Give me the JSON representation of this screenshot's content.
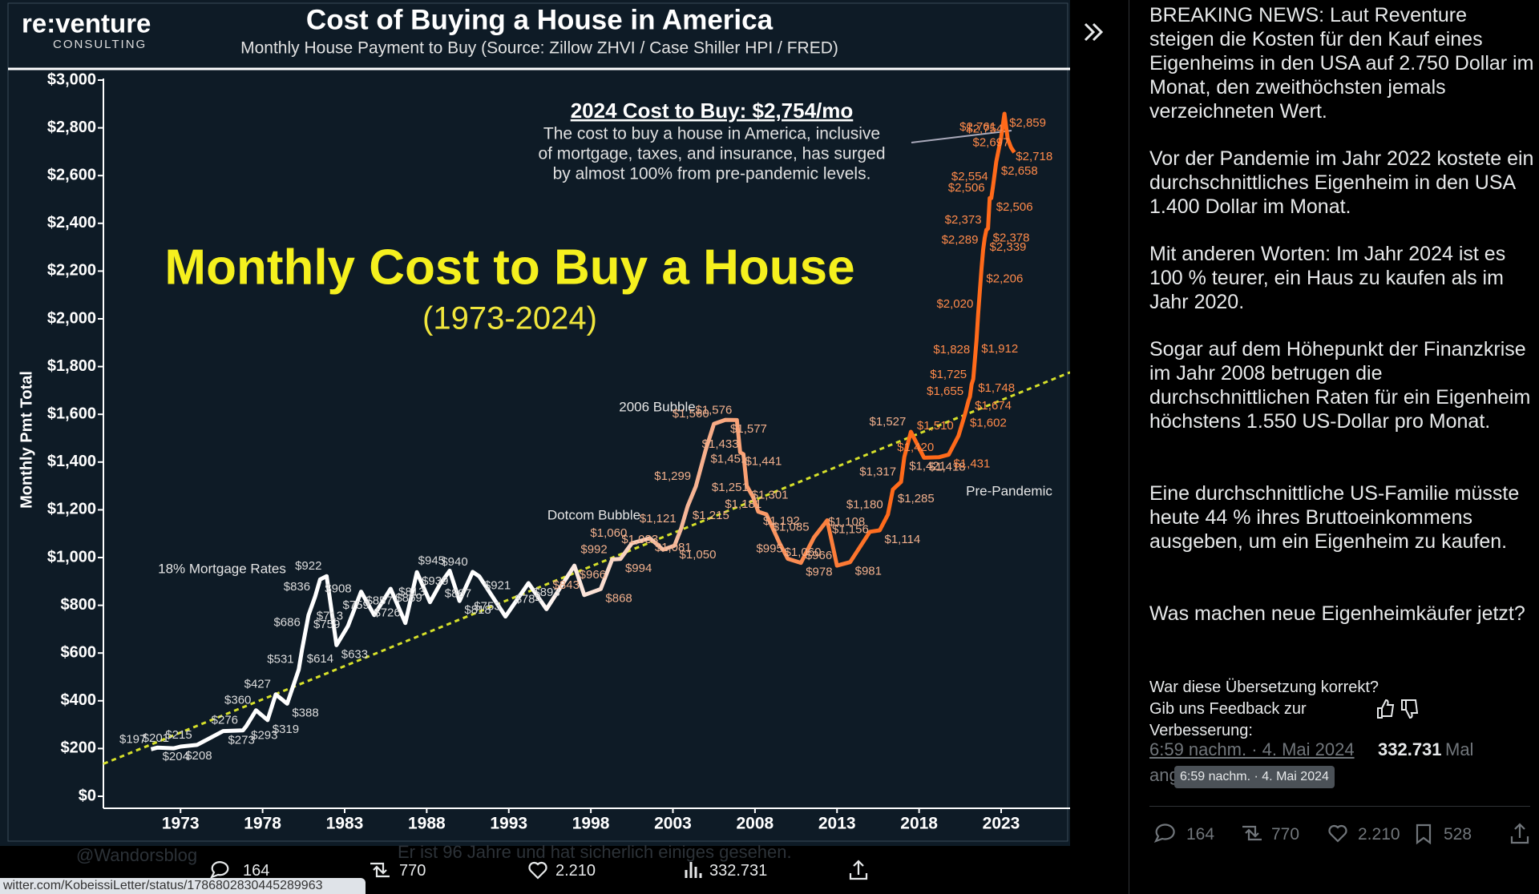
{
  "chart_data": {
    "type": "line",
    "logo": "re:venture",
    "logo_sub": "CONSULTING",
    "title": "Cost of Buying a House in America",
    "subtitle": "Monthly House Payment to Buy (Source: Zillow ZHVI / Case Shiller HPI / FRED)",
    "headline": "Monthly Cost to Buy a House",
    "headline_sub": "(1973-2024)",
    "callout_title": "2024 Cost to Buy: $2,754/mo",
    "callout_lines": [
      "The cost to buy a house in America, inclusive",
      "of mortgage, taxes, and insurance, has surged",
      "by almost 100% from pre-pandemic levels."
    ],
    "y_label": "Monthly Pmt Total",
    "annotations": [
      "18% Mortgage Rates",
      "Dotcom Bubble",
      "2006 Bubble",
      "Pre-Pandemic"
    ],
    "xlim": [
      1968.3,
      2027.2
    ],
    "ylim": [
      0,
      3000
    ],
    "xticks": [
      1973,
      1978,
      1983,
      1988,
      1993,
      1998,
      2003,
      2008,
      2013,
      2018,
      2023
    ],
    "yticks": [
      {
        "value": 0,
        "label": "$0"
      },
      {
        "value": 200,
        "label": "$200"
      },
      {
        "value": 400,
        "label": "$400"
      },
      {
        "value": 600,
        "label": "$600"
      },
      {
        "value": 800,
        "label": "$800"
      },
      {
        "value": 1000,
        "label": "$1,000"
      },
      {
        "value": 1200,
        "label": "$1,200"
      },
      {
        "value": 1400,
        "label": "$1,400"
      },
      {
        "value": 1600,
        "label": "$1,600"
      },
      {
        "value": 1800,
        "label": "$1,800"
      },
      {
        "value": 2000,
        "label": "$2,000"
      },
      {
        "value": 2200,
        "label": "$2,200"
      },
      {
        "value": 2400,
        "label": "$2,400"
      },
      {
        "value": 2600,
        "label": "$2,600"
      },
      {
        "value": 2800,
        "label": "$2,800"
      },
      {
        "value": 3000,
        "label": "$3,000"
      }
    ],
    "series": [
      {
        "colors": [
          "#ffffff",
          "#f6b99c",
          "#ff6a1a"
        ],
        "x": [
          1971.2,
          1971.6,
          1972.6,
          1973.0,
          1974.0,
          1975.6,
          1976.8,
          1977.0,
          1977.6,
          1978.3,
          1978.8,
          1979.5,
          1980.2,
          1980.4,
          1980.6,
          1980.8,
          1981.2,
          1981.5,
          1981.9,
          1982.5,
          1983.2,
          1984.0,
          1984.8,
          1985.8,
          1986.7,
          1987.4,
          1988.2,
          1988.8,
          1989.4,
          1990.0,
          1990.8,
          1991.2,
          1992.8,
          1994.2,
          1995.3,
          1997.0,
          1997.6,
          1998.6,
          1999.3,
          1999.8,
          2000.5,
          2001.6,
          2002.4,
          2003.1,
          2003.5,
          2003.9,
          2004.4,
          2005.0,
          2005.5,
          2006.2,
          2006.9,
          2007.1,
          2007.3,
          2007.5,
          2007.9,
          2008.2,
          2008.7,
          2009.5,
          2010.0,
          2010.8,
          2011.6,
          2012.4,
          2013.0,
          2013.8,
          2015.0,
          2015.6,
          2016.1,
          2016.4,
          2016.9,
          2017.1,
          2017.5,
          2018.3,
          2019.2,
          2019.8,
          2020.4,
          2020.8,
          2021.0,
          2021.1,
          2021.2,
          2021.3,
          2021.4,
          2021.5,
          2021.6,
          2021.8,
          2021.9,
          2022.0,
          2022.1,
          2022.2,
          2022.3,
          2022.4,
          2022.5,
          2022.7,
          2023.0,
          2023.2,
          2023.4,
          2023.6,
          2023.8
        ],
        "values": [
          197,
          204,
          201,
          208,
          215,
          273,
          276,
          293,
          360,
          319,
          427,
          388,
          531,
          614,
          686,
          759,
          836,
          908,
          922,
          633,
          713,
          857,
          759,
          869,
          726,
          939,
          813,
          887,
          945,
          818,
          940,
          921,
          753,
          893,
          784,
          966,
          843,
          868,
          992,
          994,
          1060,
          1081,
          1033,
          1050,
          1121,
          1215,
          1299,
          1451,
          1560,
          1577,
          1576,
          1441,
          1433,
          1301,
          1251,
          1192,
          1181,
          1060,
          995,
          978,
          1085,
          1156,
          966,
          981,
          1108,
          1114,
          1180,
          1285,
          1317,
          1421,
          1527,
          1418,
          1420,
          1431,
          1510,
          1602,
          1655,
          1674,
          1725,
          1748,
          1828,
          1912,
          2020,
          2206,
          2289,
          2339,
          2373,
          2378,
          2506,
          2506,
          2554,
          2658,
          2761,
          2859,
          2754,
          2718,
          2697
        ],
        "value_labels": [
          "$197",
          "$204",
          "$201",
          "$208",
          "$215",
          "$273",
          "$276",
          "$293",
          "$360",
          "$319",
          "$427",
          "$388",
          "$531",
          "$614",
          "$686",
          "$759",
          "$836",
          "$908",
          "$922",
          "$633",
          "$713",
          "$857",
          "$759",
          "$869",
          "$726",
          "$939",
          "$813",
          "$887",
          "$945",
          "$818",
          "$940",
          "$921",
          "$753",
          "$893",
          "$784",
          "$966",
          "$843",
          "$868",
          "$992",
          "$994",
          "$1,060",
          "$1,081",
          "$1,033",
          "$1,050",
          "$1,121",
          "$1,215",
          "$1,299",
          "$1,451",
          "$1,560",
          "$1,577",
          "$1,576",
          "$1,441",
          "$1,433",
          "$1,301",
          "$1,251",
          "$1,192",
          "$1,181",
          "$1,060",
          "$995",
          "$978",
          "$1,085",
          "$1,156",
          "$966",
          "$981",
          "$1,108",
          "$1,114",
          "$1,180",
          "$1,285",
          "$1,317",
          "$1,421",
          "$1,527",
          "$1,418",
          "$1,420",
          "$1,431",
          "$1,510",
          "$1,602",
          "$1,655",
          "$1,674",
          "$1,725",
          "$1,748",
          "$1,828",
          "$1,912",
          "$2,020",
          "$2,206",
          "$2,289",
          "$2,339",
          "$2,373",
          "$2,378",
          "$2,506",
          "$2,506",
          "$2,554",
          "$2,658",
          "$2,761",
          "$2,859",
          "$2,754",
          "$2,718",
          "$2,697"
        ]
      }
    ],
    "trendline": {
      "x": [
        1968.3,
        2027.2
      ],
      "values": [
        136,
        1776
      ],
      "color": "#d6e02a"
    }
  },
  "ui": {
    "url": "witter.com/KobeissiLetter/status/1786802830445289963",
    "background_reply": {
      "handle": "@Wandorsblog",
      "text": "Er ist 96 Jahre und hat sicherlich einiges gesehen."
    },
    "post_bar": {
      "replies": "164",
      "reposts": "770",
      "likes": "2.210",
      "views": "332.731"
    },
    "translation": [
      "BREAKING NEWS: Laut Reventure steigen die Kosten für den Kauf eines Eigenheims in den USA auf 2.750 Dollar im Monat, den zweithöchsten jemals verzeichneten Wert.",
      "Vor der Pandemie im Jahr 2022 kostete ein durchschnittliches Eigenheim in den USA 1.400 Dollar im Monat.",
      "Mit anderen Worten: Im Jahr 2024 ist es 100 % teurer, ein Haus zu kaufen als im Jahr 2020.",
      "Sogar auf dem Höhepunkt der Finanzkrise im Jahr 2008 betrugen die durchschnittlichen Raten für ein Eigenheim höchstens 1.550 US-Dollar pro Monat.",
      "Eine durchschnittliche US-Familie müsste heute 44 % ihres Bruttoeinkommens ausgeben, um ein Eigenheim zu kaufen.",
      "Was machen neue Eigenheimkäufer jetzt?"
    ],
    "feedback": "War diese Übersetzung korrekt? Gib uns Feedback zur Verbesserung:",
    "timestamp": "6:59 nachm. · 4. Mai 2024",
    "views": "332.731",
    "views_unit": "Mal",
    "views_cont": "ang",
    "tooltip": "6:59 nachm. · 4. Mai 2024",
    "actions": {
      "replies": "164",
      "reposts": "770",
      "likes": "2.210",
      "bookmarks": "528"
    }
  }
}
